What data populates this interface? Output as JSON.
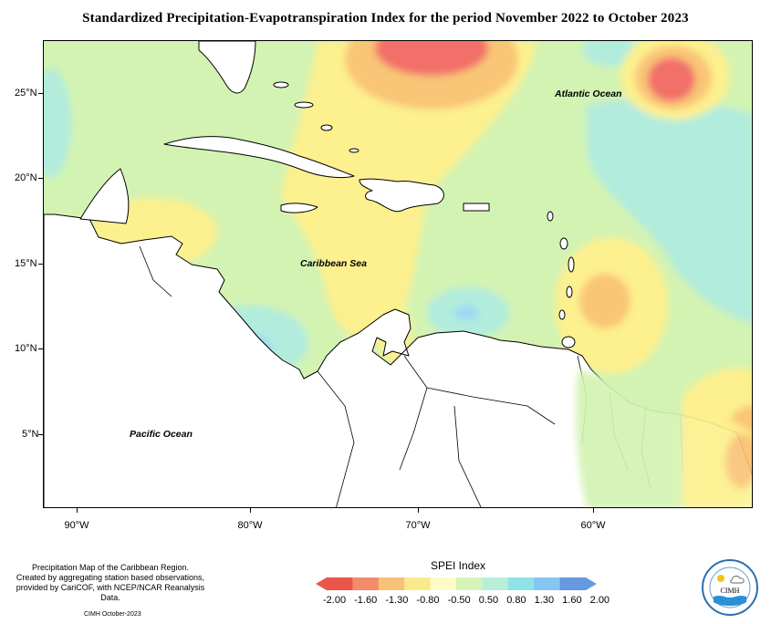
{
  "title": "Standardized Precipitation-Evapotranspiration Index for the period November 2022 to October 2023",
  "map": {
    "lat_labels": [
      "25°N",
      "20°N",
      "15°N",
      "10°N",
      "5°N"
    ],
    "lon_labels": [
      "90°W",
      "80°W",
      "70°W",
      "60°W"
    ],
    "places": {
      "atlantic": "Atlantic Ocean",
      "caribbean": "Caribbean Sea",
      "pacific": "Pacific Ocean"
    },
    "colors": {
      "ocean_green": "#d3f3b3",
      "yellow": "#fdf08e",
      "orange": "#f9c577",
      "red": "#f2706a",
      "cyan": "#b2ecdd",
      "blue": "#9fd9f3",
      "land": "#ffffff"
    }
  },
  "footer": {
    "line1": "Precipitation Map of the Caribbean Region.",
    "line2": "Created by aggregating station based observations,",
    "line3": "provided by CariCOF, with NCEP/NCAR Reanalysis Data.",
    "credit": "CIMH October-2023"
  },
  "legend": {
    "title": "SPEI Index",
    "labels": [
      "-2.00",
      "-1.60",
      "-1.30",
      "-0.80",
      "-0.50",
      "0.50",
      "0.80",
      "1.30",
      "1.60",
      "2.00"
    ],
    "colors": [
      "#e9564b",
      "#f38c6a",
      "#f8c17a",
      "#fbe98d",
      "#fefcc6",
      "#d6f4b8",
      "#b7eed8",
      "#8fe2e7",
      "#85c7f2",
      "#6699e0"
    ]
  },
  "logo": {
    "text": "CIMH"
  }
}
